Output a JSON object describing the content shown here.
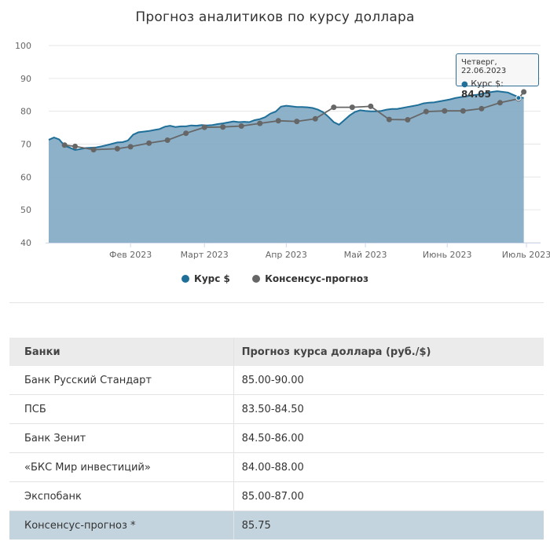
{
  "chart_data": {
    "type": "area",
    "title": "Прогноз аналитиков по курсу доллара",
    "ylim": [
      40,
      100
    ],
    "yticks": [
      40,
      50,
      60,
      70,
      80,
      90,
      100
    ],
    "xlim": [
      0,
      181
    ],
    "xticks": [
      {
        "label": "Фев 2023",
        "x": 31
      },
      {
        "label": "Март 2023",
        "x": 59
      },
      {
        "label": "Апр 2023",
        "x": 90
      },
      {
        "label": "Май 2023",
        "x": 120
      },
      {
        "label": "Июнь 2023",
        "x": 151
      },
      {
        "label": "Июль 2023",
        "x": 181
      }
    ],
    "legend_position": "bottom",
    "series": [
      {
        "name": "Курс $",
        "color": "#1f6f99",
        "x": [
          0,
          2,
          4,
          6,
          8,
          10,
          12,
          14,
          16,
          18,
          20,
          22,
          24,
          26,
          28,
          30,
          32,
          34,
          36,
          38,
          40,
          42,
          44,
          46,
          48,
          50,
          52,
          54,
          56,
          58,
          60,
          62,
          64,
          66,
          68,
          70,
          72,
          74,
          76,
          78,
          80,
          82,
          84,
          86,
          88,
          90,
          92,
          94,
          96,
          98,
          100,
          102,
          104,
          106,
          108,
          110,
          112,
          114,
          116,
          118,
          120,
          122,
          124,
          126,
          128,
          130,
          132,
          134,
          136,
          138,
          140,
          142,
          144,
          146,
          148,
          150,
          152,
          154,
          156,
          158,
          160,
          162,
          164,
          166,
          168,
          170,
          172,
          174,
          176,
          178,
          180
        ],
        "values": [
          71.3,
          72.0,
          71.4,
          69.5,
          68.9,
          68.2,
          68.5,
          68.8,
          68.9,
          69.0,
          69.3,
          69.7,
          70.1,
          70.5,
          70.6,
          71.1,
          72.9,
          73.6,
          73.8,
          74.0,
          74.3,
          74.6,
          75.3,
          75.6,
          75.2,
          75.4,
          75.4,
          75.7,
          75.6,
          75.8,
          75.7,
          75.8,
          76.1,
          76.3,
          76.6,
          76.9,
          76.7,
          76.8,
          76.7,
          77.3,
          77.6,
          78.2,
          79.3,
          79.9,
          81.4,
          81.7,
          81.5,
          81.3,
          81.3,
          81.2,
          81.0,
          80.5,
          79.7,
          78.3,
          76.7,
          75.9,
          77.3,
          78.7,
          79.8,
          80.3,
          80.1,
          80.0,
          80.0,
          80.1,
          80.5,
          80.7,
          80.7,
          81.0,
          81.3,
          81.6,
          81.9,
          82.4,
          82.6,
          82.7,
          83.0,
          83.3,
          83.6,
          84.0,
          84.3,
          84.5,
          84.8,
          85.0,
          85.3,
          85.6,
          85.9,
          86.1,
          85.9,
          85.7,
          85.0,
          84.3,
          84.05
        ]
      },
      {
        "name": "Консенсус-прогноз",
        "color": "#666666",
        "x": [
          6,
          10,
          17,
          26,
          31,
          38,
          45,
          52,
          59,
          66,
          73,
          80,
          87,
          94,
          101,
          108,
          115,
          122,
          129,
          136,
          143,
          150,
          157,
          164,
          171,
          178,
          180
        ],
        "values": [
          69.7,
          69.3,
          68.3,
          68.6,
          69.2,
          70.3,
          71.2,
          73.3,
          75.1,
          75.2,
          75.5,
          76.3,
          77.1,
          76.9,
          77.7,
          81.2,
          81.2,
          81.5,
          77.5,
          77.4,
          79.9,
          80.1,
          80.1,
          80.8,
          82.6,
          83.8,
          85.9
        ]
      }
    ],
    "tooltip": {
      "date": "Четверг, 22.06.2023",
      "series": "Курс $",
      "value": "84.05",
      "value_x": 178
    }
  },
  "table": {
    "headers": [
      "Банки",
      "Прогноз курса доллара (руб./$)"
    ],
    "rows": [
      [
        "Банк Русский Стандарт",
        "85.00-90.00"
      ],
      [
        "ПСБ",
        "83.50-84.50"
      ],
      [
        "Банк Зенит",
        "84.50-86.00"
      ],
      [
        "«БКС Мир инвестиций»",
        "84.00-88.00"
      ],
      [
        "Экспобанк",
        "85.00-87.00"
      ],
      [
        "Консенсус-прогноз *",
        "85.75"
      ]
    ]
  }
}
